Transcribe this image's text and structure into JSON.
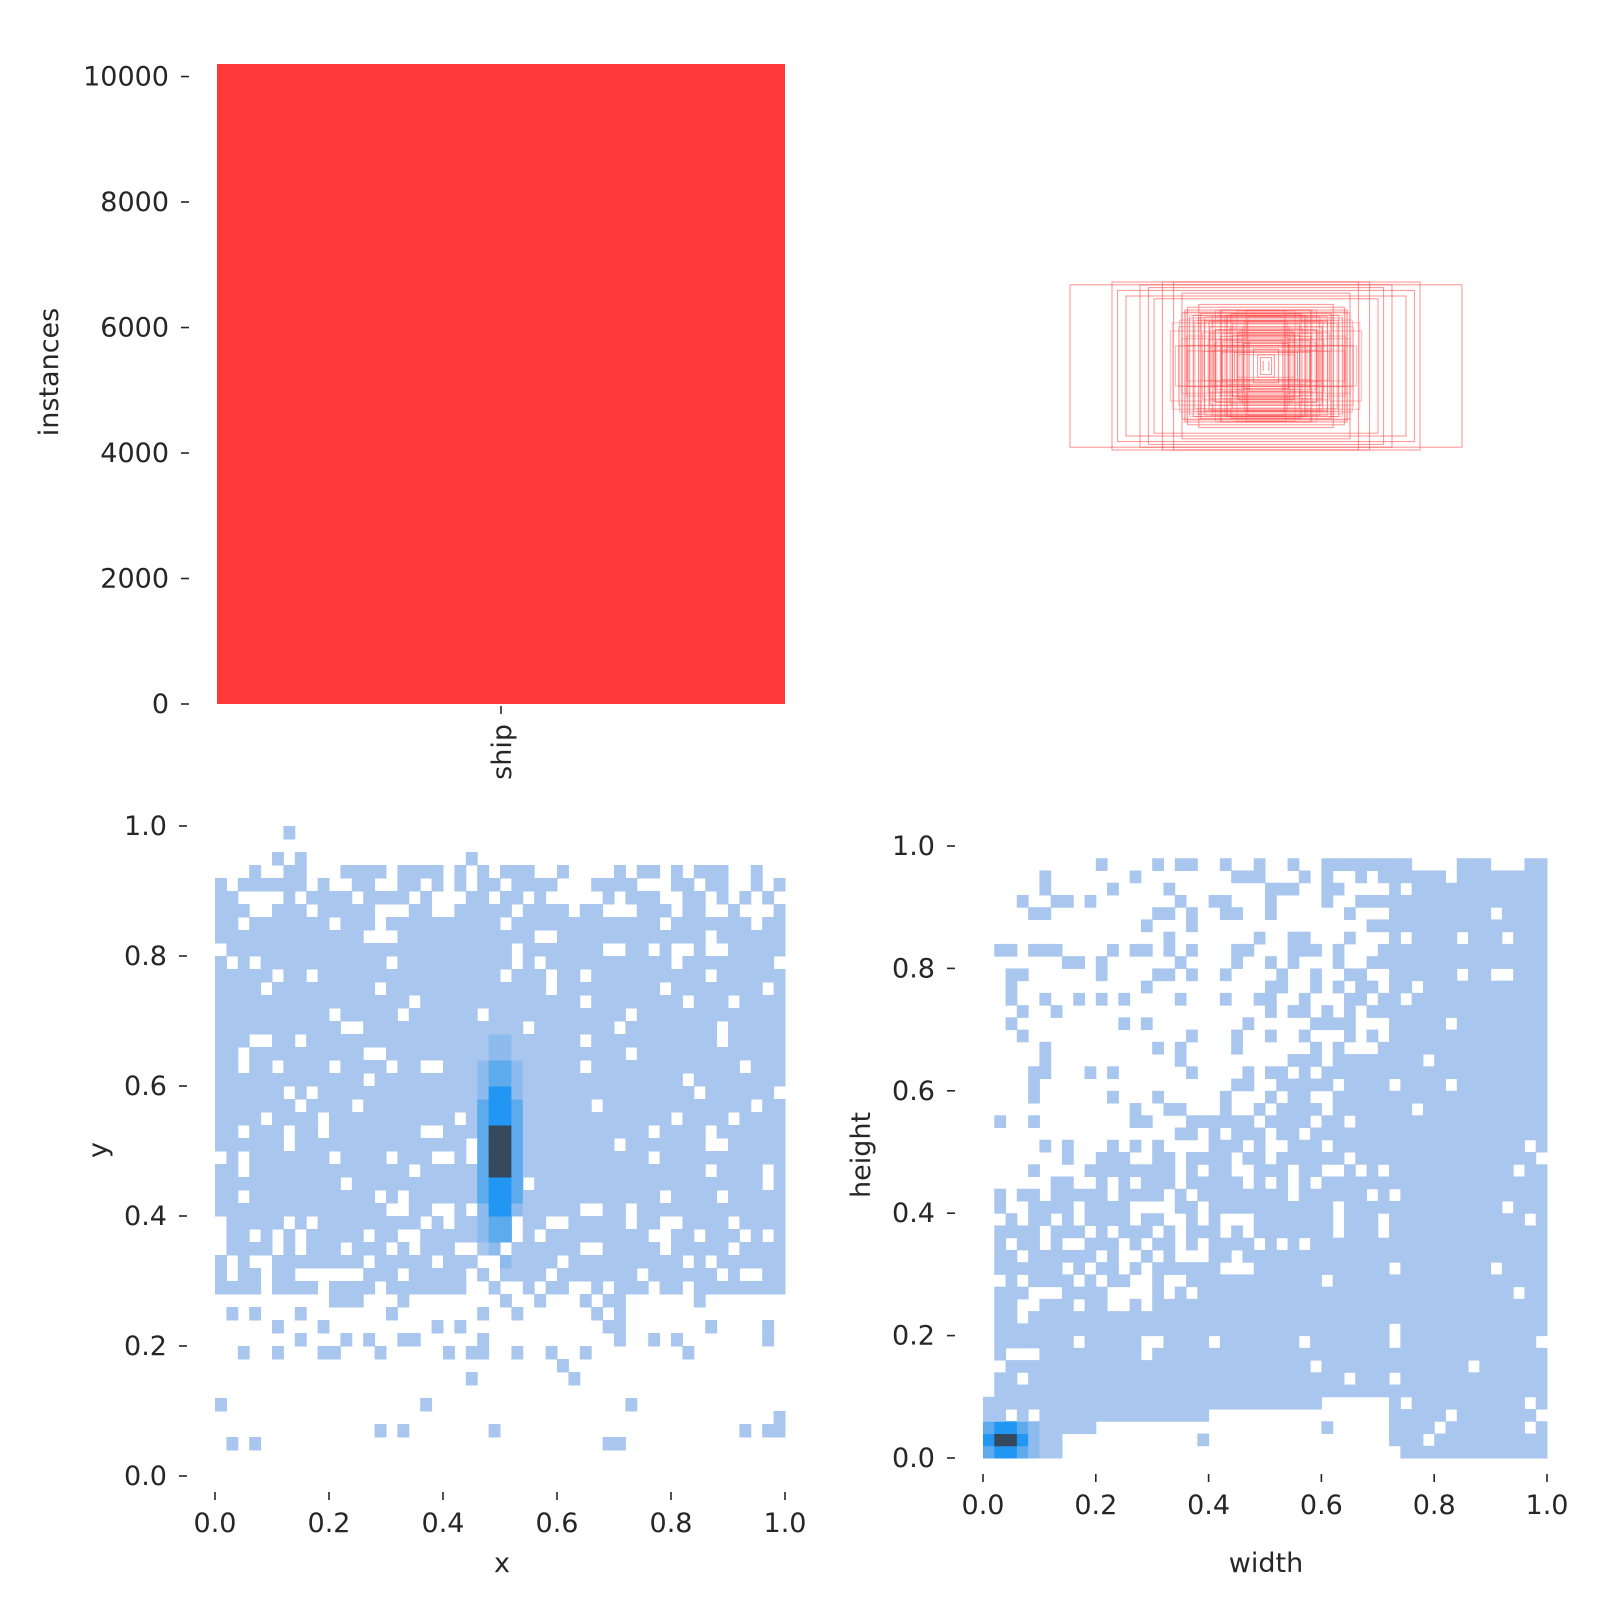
{
  "chart_data": [
    {
      "type": "bar",
      "categories": [
        "ship"
      ],
      "values": [
        10200
      ],
      "xlabel": "",
      "ylabel": "instances",
      "ylim": [
        0,
        10200
      ],
      "yticks": [
        "0",
        "2000",
        "4000",
        "6000",
        "8000",
        "10000"
      ],
      "color": "#ff3838",
      "grid": false
    },
    {
      "type": "box-overlay",
      "description_of_marks": "",
      "boxes": [
        {
          "w": 0.7,
          "h": 0.29
        },
        {
          "w": 0.55,
          "h": 0.3
        },
        {
          "w": 0.53,
          "h": 0.27
        },
        {
          "w": 0.5,
          "h": 0.25
        },
        {
          "w": 0.45,
          "h": 0.29
        },
        {
          "w": 0.42,
          "h": 0.28
        },
        {
          "w": 0.4,
          "h": 0.24
        },
        {
          "w": 0.37,
          "h": 0.3
        },
        {
          "w": 0.33,
          "h": 0.3
        },
        {
          "w": 0.3,
          "h": 0.26
        },
        {
          "w": 0.3,
          "h": 0.19
        },
        {
          "w": 0.29,
          "h": 0.2
        },
        {
          "w": 0.28,
          "h": 0.21
        },
        {
          "w": 0.26,
          "h": 0.18
        },
        {
          "w": 0.24,
          "h": 0.22
        },
        {
          "w": 0.22,
          "h": 0.16
        },
        {
          "w": 0.2,
          "h": 0.14
        },
        {
          "w": 0.18,
          "h": 0.13
        },
        {
          "w": 0.16,
          "h": 0.2
        },
        {
          "w": 0.14,
          "h": 0.18
        },
        {
          "w": 0.12,
          "h": 0.11
        },
        {
          "w": 0.1,
          "h": 0.12
        },
        {
          "w": 0.08,
          "h": 0.08
        },
        {
          "w": 0.06,
          "h": 0.09
        },
        {
          "w": 0.045,
          "h": 0.06
        },
        {
          "w": 0.03,
          "h": 0.04
        },
        {
          "w": 0.02,
          "h": 0.03
        },
        {
          "w": 0.01,
          "h": 0.015
        }
      ],
      "color": "#ff3838"
    },
    {
      "type": "heatmap",
      "xlabel": "x",
      "ylabel": "y",
      "xlim": [
        0,
        1
      ],
      "ylim": [
        0,
        1
      ],
      "xticks": [
        "0.0",
        "0.2",
        "0.4",
        "0.6",
        "0.8",
        "1.0"
      ],
      "yticks": [
        "0.0",
        "0.2",
        "0.4",
        "0.6",
        "0.8",
        "1.0"
      ],
      "bins": 50,
      "peak": {
        "x": 0.5,
        "y": 0.5
      },
      "color_light": "#a9c7ee",
      "color_mid": "#2196f3",
      "color_dark": "#34495e"
    },
    {
      "type": "heatmap",
      "xlabel": "width",
      "ylabel": "height",
      "xlim": [
        0,
        1
      ],
      "ylim": [
        0,
        1
      ],
      "xticks": [
        "0.0",
        "0.2",
        "0.4",
        "0.6",
        "0.8",
        "1.0"
      ],
      "yticks": [
        "0.0",
        "0.2",
        "0.4",
        "0.6",
        "0.8",
        "1.0"
      ],
      "bins": 50,
      "peak": {
        "x": 0.04,
        "y": 0.03
      },
      "color_light": "#a9c7ee",
      "color_mid": "#2196f3",
      "color_dark": "#34495e"
    }
  ]
}
